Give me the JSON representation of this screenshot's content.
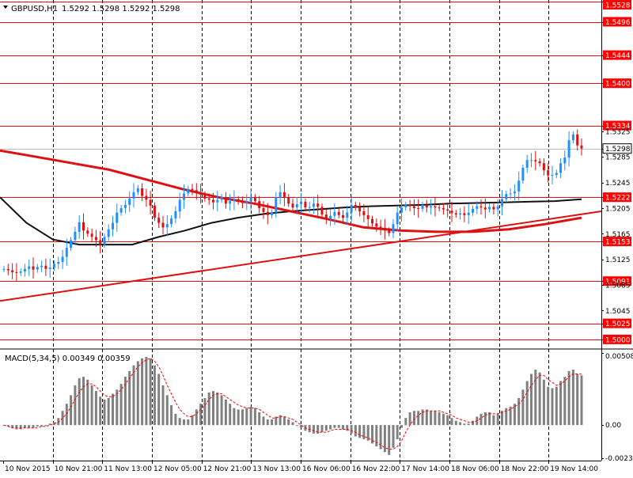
{
  "header": {
    "title": "GBPUSD,H1",
    "ohlc": "1.5292 1.5298 1.5292 1.5298",
    "dropdown_icon": "triangle-down-icon"
  },
  "colors": {
    "bull": "#1e90ff",
    "bear": "#dd1111",
    "level_line": "#dd1111",
    "trendline": "#dd1111",
    "ma_fast": "#dd1111",
    "ma_slow": "#111111",
    "macd_hist": "#808080",
    "macd_signal": "#ff0000",
    "grid": "#000000",
    "label_bg": "#ff0000",
    "label_text": "#ffffff"
  },
  "chart_data": [
    {
      "type": "candlestick",
      "title": "GBPUSD,H1",
      "symbol": "GBPUSD",
      "timeframe": "H1",
      "ylim": [
        1.4985,
        1.553
      ],
      "y_ticks": [
        "1.5528",
        "1.5496",
        "1.5444",
        "1.5400",
        "1.5334",
        "1.5325",
        "1.5298",
        "1.5285",
        "1.5245",
        "1.5222",
        "1.5205",
        "1.5165",
        "1.5153",
        "1.5125",
        "1.5091",
        "1.5085",
        "1.5045",
        "1.5025",
        "1.5000"
      ],
      "x_tick_labels": [
        "10 Nov 2015",
        "10 Nov 21:00",
        "11 Nov 13:00",
        "12 Nov 05:00",
        "12 Nov 21:00",
        "13 Nov 13:00",
        "16 Nov 06:00",
        "16 Nov 22:00",
        "17 Nov 14:00",
        "18 Nov 06:00",
        "18 Nov 22:00",
        "19 Nov 14:00"
      ],
      "current_price": "1.5298",
      "horizontal_levels": [
        "1.5528",
        "1.5496",
        "1.5444",
        "1.5400",
        "1.5334",
        "1.5222",
        "1.5153",
        "1.5091",
        "1.5025",
        "1.5000"
      ],
      "trendline": {
        "start": 1.506,
        "end": 1.52
      },
      "grid": true,
      "series": [
        {
          "type": "candlestick",
          "close": [
            1.511,
            1.5108,
            1.5105,
            1.5104,
            1.5106,
            1.511,
            1.5114,
            1.5109,
            1.5113,
            1.5115,
            1.511,
            1.5112,
            1.5118,
            1.5121,
            1.5129,
            1.5143,
            1.5155,
            1.5168,
            1.5183,
            1.517,
            1.5165,
            1.516,
            1.5155,
            1.5148,
            1.516,
            1.5172,
            1.5182,
            1.5198,
            1.5205,
            1.521,
            1.522,
            1.523,
            1.5236,
            1.5224,
            1.5218,
            1.5209,
            1.519,
            1.5182,
            1.5175,
            1.518,
            1.5189,
            1.52,
            1.5218,
            1.5228,
            1.5235,
            1.5233,
            1.5229,
            1.5226,
            1.522,
            1.5218,
            1.5214,
            1.5218,
            1.5222,
            1.5212,
            1.5216,
            1.5219,
            1.5215,
            1.5213,
            1.5216,
            1.5222,
            1.5216,
            1.5205,
            1.5199,
            1.5194,
            1.5198,
            1.5222,
            1.523,
            1.5222,
            1.5212,
            1.5206,
            1.5211,
            1.5215,
            1.5206,
            1.5207,
            1.5212,
            1.5207,
            1.5195,
            1.5188,
            1.5193,
            1.5199,
            1.5194,
            1.519,
            1.5198,
            1.521,
            1.5206,
            1.52,
            1.5194,
            1.5188,
            1.5181,
            1.5176,
            1.5174,
            1.517,
            1.5166,
            1.518,
            1.5198,
            1.5206,
            1.521,
            1.5208,
            1.5205,
            1.5204,
            1.521,
            1.5206,
            1.5208,
            1.5206,
            1.5205,
            1.5203,
            1.5201,
            1.5197,
            1.5195,
            1.5197,
            1.5194,
            1.5198,
            1.5204,
            1.5208,
            1.5206,
            1.5203,
            1.5207,
            1.5203,
            1.5208,
            1.5219,
            1.5227,
            1.5228,
            1.5231,
            1.5248,
            1.5268,
            1.528,
            1.528,
            1.5278,
            1.5275,
            1.5264,
            1.5256,
            1.5257,
            1.526,
            1.5275,
            1.5284,
            1.5311,
            1.532,
            1.5303,
            1.5298
          ]
        },
        {
          "type": "line",
          "values": [
            1.5222,
            1.5182,
            1.5156,
            1.5148,
            1.5148,
            1.5148,
            1.516,
            1.517,
            1.5182,
            1.519,
            1.5196,
            1.52,
            1.5203,
            1.5206,
            1.5208,
            1.5209,
            1.521,
            1.5212,
            1.5213,
            1.5214,
            1.5215,
            1.5216,
            1.5219
          ]
        },
        {
          "type": "line",
          "values": [
            1.5295,
            1.5285,
            1.5275,
            1.5265,
            1.525,
            1.5235,
            1.5222,
            1.5212,
            1.52,
            1.5188,
            1.5175,
            1.517,
            1.5168,
            1.5168,
            1.5172,
            1.518,
            1.519
          ]
        }
      ]
    },
    {
      "type": "bar",
      "title": "MACD(5,34,5) 0.00349 0.00359",
      "indicator": "MACD",
      "params": [
        5,
        34,
        5
      ],
      "ylim": [
        -0.0025,
        0.0053
      ],
      "y_ticks": [
        "0.00508",
        "0.00",
        "-0.00233"
      ],
      "series": [
        {
          "type": "bar",
          "values": [
            0.0,
            -0.0001,
            -0.0002,
            -0.0003,
            -0.0003,
            -0.0002,
            -0.0002,
            -0.0002,
            -0.0001,
            -0.0001,
            0.0,
            0.0001,
            0.0002,
            0.0005,
            0.001,
            0.0015,
            0.0021,
            0.0028,
            0.0033,
            0.0034,
            0.0032,
            0.0028,
            0.0024,
            0.002,
            0.0018,
            0.0019,
            0.0022,
            0.0025,
            0.0029,
            0.0034,
            0.0038,
            0.0042,
            0.0045,
            0.0047,
            0.0048,
            0.0047,
            0.0042,
            0.0036,
            0.0028,
            0.0021,
            0.0014,
            0.0008,
            0.0005,
            0.0004,
            0.0004,
            0.0007,
            0.0011,
            0.0015,
            0.0019,
            0.0023,
            0.0024,
            0.0023,
            0.0021,
            0.0018,
            0.0015,
            0.0012,
            0.0011,
            0.0011,
            0.0012,
            0.0013,
            0.0012,
            0.0009,
            0.0006,
            0.0004,
            0.0004,
            0.0006,
            0.0007,
            0.0006,
            0.0004,
            0.0002,
            0.0,
            -0.0002,
            -0.0004,
            -0.0005,
            -0.0006,
            -0.0006,
            -0.0005,
            -0.0004,
            -0.0003,
            -0.0002,
            -0.0002,
            -0.0003,
            -0.0004,
            -0.0006,
            -0.0008,
            -0.0009,
            -0.001,
            -0.0011,
            -0.0013,
            -0.0015,
            -0.0017,
            -0.0019,
            -0.0021,
            -0.0016,
            -0.001,
            -0.0002,
            0.0005,
            0.0009,
            0.001,
            0.001,
            0.0011,
            0.0011,
            0.001,
            0.001,
            0.0009,
            0.0008,
            0.0007,
            0.0005,
            0.0003,
            0.0002,
            0.0001,
            0.0001,
            0.0003,
            0.0006,
            0.0008,
            0.0009,
            0.0009,
            0.0007,
            0.0008,
            0.001,
            0.0012,
            0.0013,
            0.0015,
            0.0019,
            0.0025,
            0.0031,
            0.0036,
            0.0039,
            0.0037,
            0.0032,
            0.0027,
            0.0026,
            0.0027,
            0.0031,
            0.0034,
            0.0038,
            0.0039,
            0.0036,
            0.0035
          ]
        },
        {
          "type": "line",
          "values": [
            0.0,
            -0.0001,
            -0.0002,
            -0.0002,
            -0.0002,
            -0.0002,
            -0.0002,
            -0.0002,
            -0.0002,
            -0.0001,
            -0.0001,
            0.0,
            0.0001,
            0.0002,
            0.0005,
            0.0008,
            0.0013,
            0.0018,
            0.0023,
            0.0027,
            0.0029,
            0.0029,
            0.0027,
            0.0024,
            0.0021,
            0.002,
            0.002,
            0.0022,
            0.0025,
            0.0029,
            0.0033,
            0.0037,
            0.0041,
            0.0044,
            0.0046,
            0.0047,
            0.0045,
            0.0041,
            0.0035,
            0.0028,
            0.0022,
            0.0016,
            0.0011,
            0.0008,
            0.0006,
            0.0006,
            0.0008,
            0.0011,
            0.0014,
            0.0018,
            0.0021,
            0.0022,
            0.0022,
            0.002,
            0.0018,
            0.0016,
            0.0014,
            0.0013,
            0.0012,
            0.0012,
            0.0012,
            0.0011,
            0.0009,
            0.0007,
            0.0005,
            0.0005,
            0.0006,
            0.0006,
            0.0005,
            0.0004,
            0.0002,
            0.0,
            -0.0002,
            -0.0003,
            -0.0004,
            -0.0005,
            -0.0005,
            -0.0005,
            -0.0004,
            -0.0003,
            -0.0003,
            -0.0003,
            -0.0003,
            -0.0004,
            -0.0005,
            -0.0007,
            -0.0008,
            -0.0009,
            -0.0011,
            -0.0012,
            -0.0014,
            -0.0016,
            -0.0017,
            -0.0017,
            -0.0015,
            -0.0011,
            -0.0005,
            0.0,
            0.0004,
            0.0007,
            0.0009,
            0.001,
            0.001,
            0.001,
            0.001,
            0.0009,
            0.0008,
            0.0007,
            0.0005,
            0.0004,
            0.0003,
            0.0002,
            0.0002,
            0.0003,
            0.0005,
            0.0007,
            0.0008,
            0.0008,
            0.0008,
            0.0009,
            0.001,
            0.0011,
            0.0013,
            0.0015,
            0.0018,
            0.0023,
            0.0028,
            0.0032,
            0.0035,
            0.0035,
            0.0032,
            0.003,
            0.0028,
            0.0029,
            0.0031,
            0.0034,
            0.0036,
            0.0036,
            0.00359
          ]
        }
      ]
    }
  ]
}
